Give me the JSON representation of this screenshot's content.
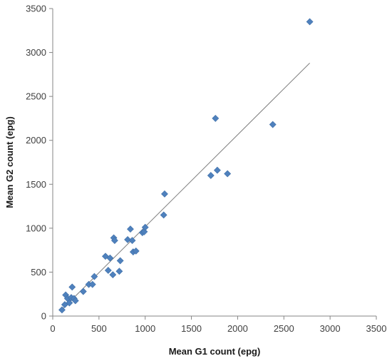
{
  "chart_data": {
    "type": "scatter",
    "title": "",
    "xlabel": "Mean G1 count (epg)",
    "ylabel": "Mean G2 count (epg)",
    "xlim": [
      0,
      3500
    ],
    "ylim": [
      0,
      3500
    ],
    "x_ticks": [
      0,
      500,
      1000,
      1500,
      2000,
      2500,
      3000,
      3500
    ],
    "y_ticks": [
      0,
      500,
      1000,
      1500,
      2000,
      2500,
      3000,
      3500
    ],
    "grid": false,
    "legend": "none",
    "marker": "diamond",
    "marker_color": "#4F81BD",
    "trendline": {
      "type": "linear",
      "color": "#7f7f7f",
      "x_start": 100,
      "y_start": 75,
      "x_end": 2780,
      "y_end": 2880
    },
    "series": [
      {
        "points": [
          [
            100,
            70
          ],
          [
            130,
            130
          ],
          [
            140,
            240
          ],
          [
            160,
            200
          ],
          [
            180,
            150
          ],
          [
            200,
            210
          ],
          [
            210,
            330
          ],
          [
            230,
            200
          ],
          [
            245,
            175
          ],
          [
            330,
            280
          ],
          [
            390,
            360
          ],
          [
            430,
            360
          ],
          [
            450,
            450
          ],
          [
            570,
            680
          ],
          [
            600,
            520
          ],
          [
            620,
            660
          ],
          [
            650,
            470
          ],
          [
            660,
            890
          ],
          [
            670,
            860
          ],
          [
            720,
            510
          ],
          [
            730,
            630
          ],
          [
            810,
            870
          ],
          [
            840,
            990
          ],
          [
            860,
            860
          ],
          [
            870,
            730
          ],
          [
            900,
            740
          ],
          [
            970,
            950
          ],
          [
            990,
            960
          ],
          [
            1000,
            1010
          ],
          [
            1200,
            1150
          ],
          [
            1210,
            1390
          ],
          [
            1710,
            1600
          ],
          [
            1760,
            2250
          ],
          [
            1780,
            1660
          ],
          [
            1890,
            1620
          ],
          [
            2380,
            2180
          ],
          [
            2780,
            3350
          ]
        ]
      }
    ]
  }
}
